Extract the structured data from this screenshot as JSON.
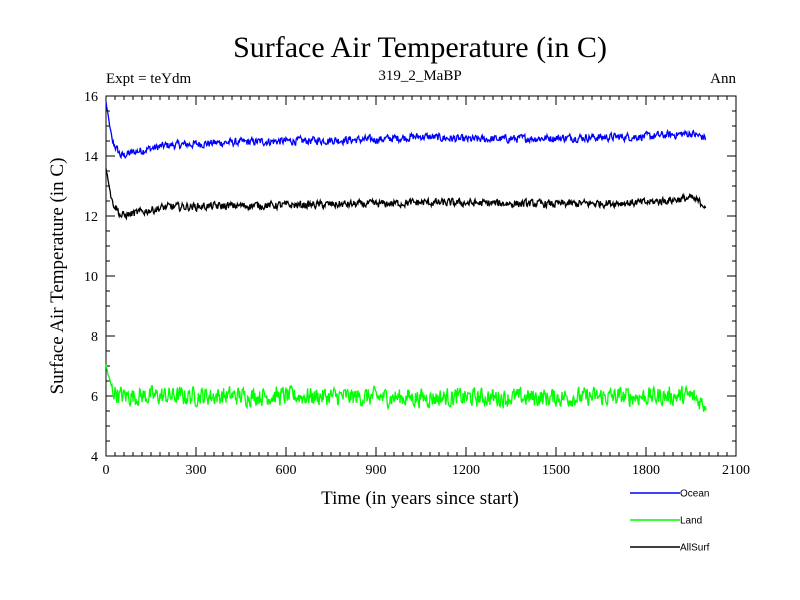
{
  "chart_data": {
    "type": "line",
    "title": "Surface Air Temperature (in C)",
    "subtitle_left": "Expt = teYdm",
    "subtitle_center": "319_2_MaBP",
    "subtitle_right": "Ann",
    "xlabel": "Time (in years since start)",
    "ylabel": "Surface Air Temperature (in C)",
    "xlim": [
      0,
      2100
    ],
    "ylim": [
      4,
      16
    ],
    "x_ticks": [
      0,
      300,
      600,
      900,
      1200,
      1500,
      1800,
      2100
    ],
    "x_tick_labels": [
      "0",
      "300",
      "600",
      "900",
      "1200",
      "1500",
      "1800",
      "2100"
    ],
    "y_ticks": [
      4,
      6,
      8,
      10,
      12,
      14,
      16
    ],
    "y_tick_labels": [
      "4",
      "6",
      "8",
      "10",
      "12",
      "14",
      "16"
    ],
    "x_end": 2000,
    "series": [
      {
        "name": "Ocean",
        "color": "#0000ff",
        "knots": [
          [
            0,
            15.8
          ],
          [
            20,
            14.5
          ],
          [
            50,
            14.0
          ],
          [
            100,
            14.15
          ],
          [
            200,
            14.35
          ],
          [
            400,
            14.45
          ],
          [
            600,
            14.5
          ],
          [
            900,
            14.55
          ],
          [
            1050,
            14.65
          ],
          [
            1200,
            14.55
          ],
          [
            1500,
            14.6
          ],
          [
            1800,
            14.65
          ],
          [
            1950,
            14.75
          ],
          [
            2000,
            14.6
          ]
        ],
        "noise": 0.12
      },
      {
        "name": "Land",
        "color": "#00ff00",
        "knots": [
          [
            0,
            7.0
          ],
          [
            20,
            6.2
          ],
          [
            50,
            6.0
          ],
          [
            200,
            6.0
          ],
          [
            600,
            6.0
          ],
          [
            1000,
            5.95
          ],
          [
            1500,
            5.95
          ],
          [
            1950,
            6.0
          ],
          [
            2000,
            5.7
          ]
        ],
        "noise": 0.28
      },
      {
        "name": "AllSurf",
        "color": "#000000",
        "knots": [
          [
            0,
            13.6
          ],
          [
            20,
            12.5
          ],
          [
            50,
            12.0
          ],
          [
            100,
            12.1
          ],
          [
            200,
            12.3
          ],
          [
            500,
            12.35
          ],
          [
            900,
            12.4
          ],
          [
            1050,
            12.45
          ],
          [
            1500,
            12.4
          ],
          [
            1800,
            12.45
          ],
          [
            1950,
            12.6
          ],
          [
            2000,
            12.35
          ]
        ],
        "noise": 0.12
      }
    ]
  }
}
